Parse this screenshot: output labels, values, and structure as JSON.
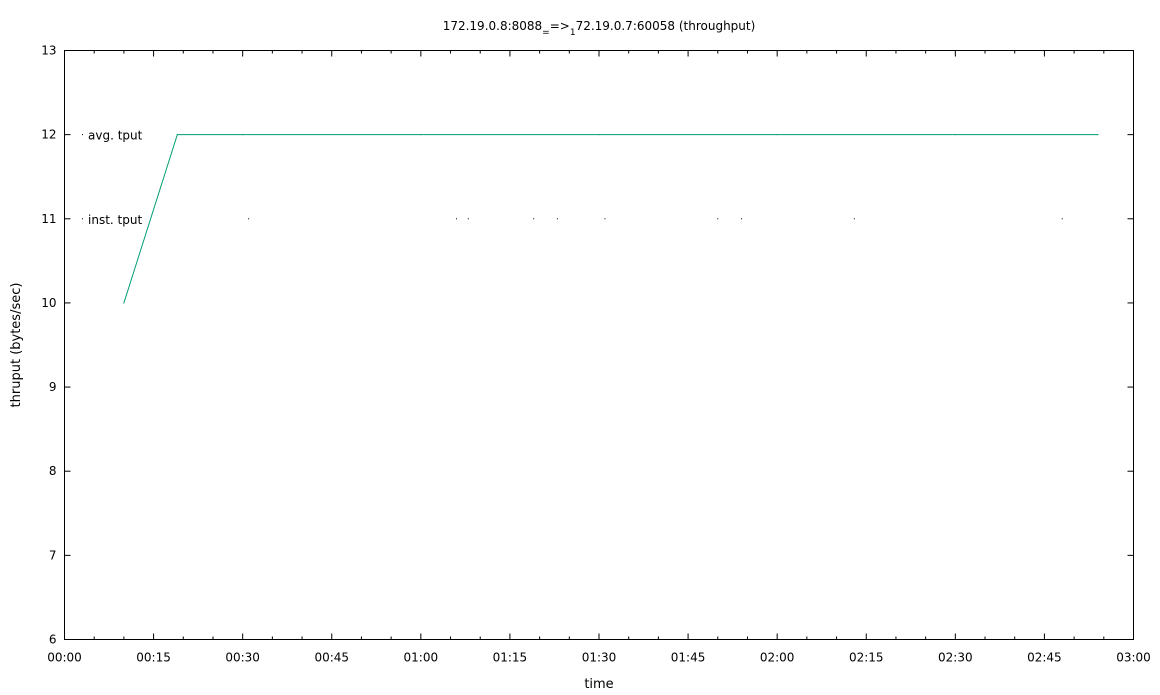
{
  "chart_data": {
    "type": "line",
    "title": {
      "main": "172.19.0.8:8088",
      "sub1": "=",
      "mid": "=>",
      "sub2": "1",
      "rest": "72.19.0.7:60058 (throughput)"
    },
    "xlabel": "time",
    "ylabel": "thruput (bytes/sec)",
    "xlim_seconds": [
      0,
      180
    ],
    "ylim": [
      6,
      13
    ],
    "x_ticks": [
      "00:00",
      "00:15",
      "00:30",
      "00:45",
      "01:00",
      "01:15",
      "01:30",
      "01:45",
      "02:00",
      "02:15",
      "02:30",
      "02:45",
      "03:00"
    ],
    "y_ticks": [
      "6",
      "7",
      "8",
      "9",
      "10",
      "11",
      "12",
      "13"
    ],
    "grid": false,
    "legend_position": "top-left",
    "series": [
      {
        "name": "avg. tput",
        "color": "#009e73",
        "style": "line",
        "x_seconds": [
          10,
          19,
          30,
          60,
          90,
          120,
          150,
          174
        ],
        "values": [
          10,
          12,
          12,
          12,
          12,
          12,
          12,
          12
        ]
      },
      {
        "name": "inst. tput",
        "color": "#000000",
        "style": "points",
        "x_seconds": [
          31,
          66,
          68,
          79,
          83,
          91,
          110,
          114,
          133,
          168
        ],
        "values": [
          11,
          11,
          11,
          11,
          11,
          11,
          11,
          11,
          11,
          11
        ]
      }
    ]
  }
}
